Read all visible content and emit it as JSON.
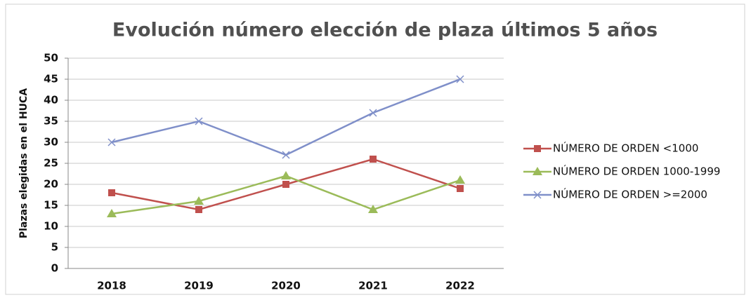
{
  "chart_data": {
    "type": "line",
    "title": "Evolución número elección de plaza últimos 5 años",
    "y_label": "Plazas elegidas en el HUCA",
    "categories": [
      "2018",
      "2019",
      "2020",
      "2021",
      "2022"
    ],
    "series": [
      {
        "name": "NÚMERO DE ORDEN <1000",
        "color": "#c0504d",
        "marker": "square",
        "values": [
          18,
          14,
          20,
          26,
          19
        ]
      },
      {
        "name": "NÚMERO DE ORDEN 1000-1999",
        "color": "#9bbb59",
        "marker": "triangle",
        "values": [
          13,
          16,
          22,
          14,
          21
        ]
      },
      {
        "name": "NÚMERO DE ORDEN >=2000",
        "color": "#7f8fc9",
        "marker": "x",
        "values": [
          30,
          35,
          27,
          37,
          45
        ]
      }
    ],
    "ylim": [
      0,
      50
    ],
    "yticks": [
      0,
      5,
      10,
      15,
      20,
      25,
      30,
      35,
      40,
      45,
      50
    ],
    "grid": true,
    "legend": "right"
  }
}
